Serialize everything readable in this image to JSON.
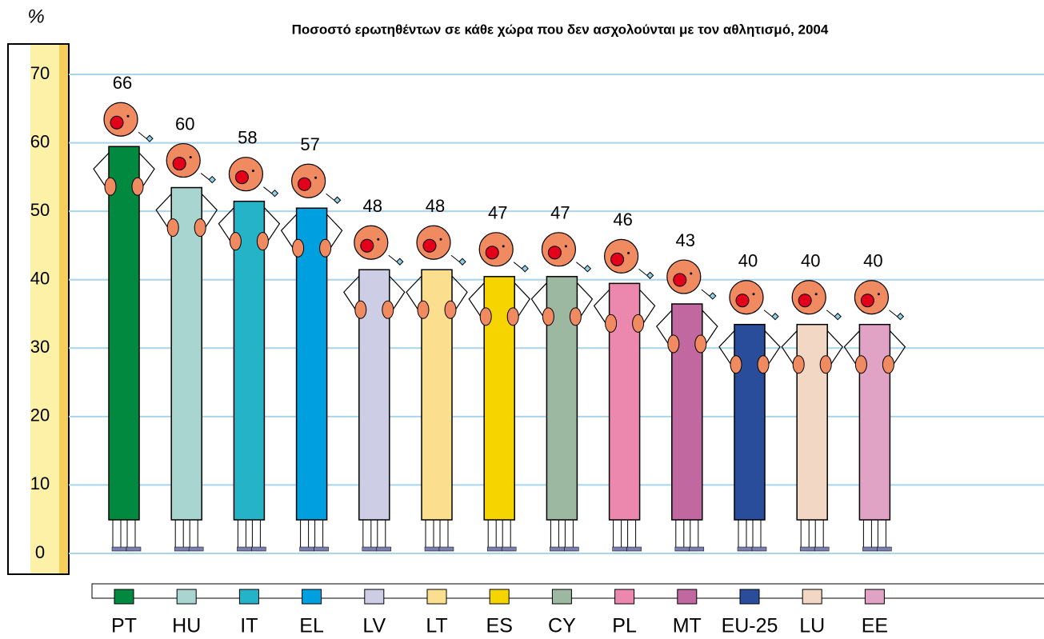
{
  "chart_data": {
    "type": "bar",
    "title": "Ποσοστό ερωτηθέντων σε κάθε χώρα που δεν ασχολούνται με τον αθλητισμό, 2004",
    "y_label": "%",
    "categories": [
      "PT",
      "HU",
      "IT",
      "EL",
      "LV",
      "LT",
      "ES",
      "CY",
      "PL",
      "MT",
      "EU-25",
      "LU",
      "EE"
    ],
    "values": [
      66,
      60,
      58,
      57,
      48,
      48,
      47,
      47,
      46,
      43,
      40,
      40,
      40
    ],
    "colors": [
      "#00893f",
      "#a8d5d0",
      "#25b3c8",
      "#009fe0",
      "#cdcde6",
      "#fbdf8f",
      "#f5d400",
      "#9cb8a0",
      "#ec88ad",
      "#c0689f",
      "#2a4d9b",
      "#f2d8c4",
      "#e0a2c5"
    ],
    "ylim": [
      0,
      70
    ],
    "yticks": [
      0,
      10,
      20,
      30,
      40,
      50,
      60,
      70
    ],
    "grid": true
  }
}
